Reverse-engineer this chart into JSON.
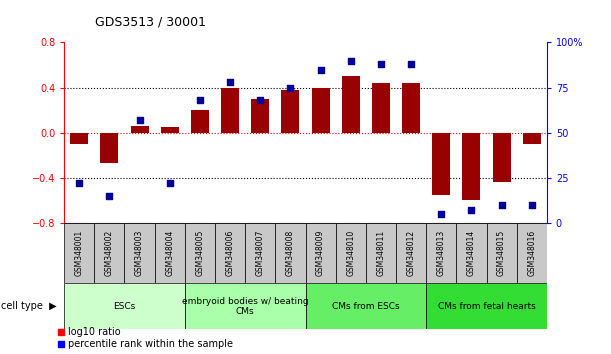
{
  "title": "GDS3513 / 30001",
  "samples": [
    "GSM348001",
    "GSM348002",
    "GSM348003",
    "GSM348004",
    "GSM348005",
    "GSM348006",
    "GSM348007",
    "GSM348008",
    "GSM348009",
    "GSM348010",
    "GSM348011",
    "GSM348012",
    "GSM348013",
    "GSM348014",
    "GSM348015",
    "GSM348016"
  ],
  "log10_ratio": [
    -0.1,
    -0.27,
    0.06,
    0.05,
    0.2,
    0.4,
    0.3,
    0.38,
    0.4,
    0.5,
    0.44,
    0.44,
    -0.55,
    -0.6,
    -0.44,
    -0.1
  ],
  "percentile_rank": [
    22,
    15,
    57,
    22,
    68,
    78,
    68,
    75,
    85,
    90,
    88,
    88,
    5,
    7,
    10,
    10
  ],
  "cell_types": [
    {
      "label": "ESCs",
      "start": 0,
      "end": 4,
      "color": "#ccffcc"
    },
    {
      "label": "embryoid bodies w/ beating\nCMs",
      "start": 4,
      "end": 8,
      "color": "#aaffaa"
    },
    {
      "label": "CMs from ESCs",
      "start": 8,
      "end": 12,
      "color": "#66ee66"
    },
    {
      "label": "CMs from fetal hearts",
      "start": 12,
      "end": 16,
      "color": "#33dd33"
    }
  ],
  "ylim_left": [
    -0.8,
    0.8
  ],
  "ylim_right": [
    0,
    100
  ],
  "bar_color": "#990000",
  "dot_color": "#000099",
  "left_ticks": [
    -0.8,
    -0.4,
    0.0,
    0.4,
    0.8
  ],
  "right_ticks": [
    0,
    25,
    50,
    75,
    100
  ],
  "sample_box_color": "#c8c8c8",
  "fig_width": 6.11,
  "fig_height": 3.54
}
